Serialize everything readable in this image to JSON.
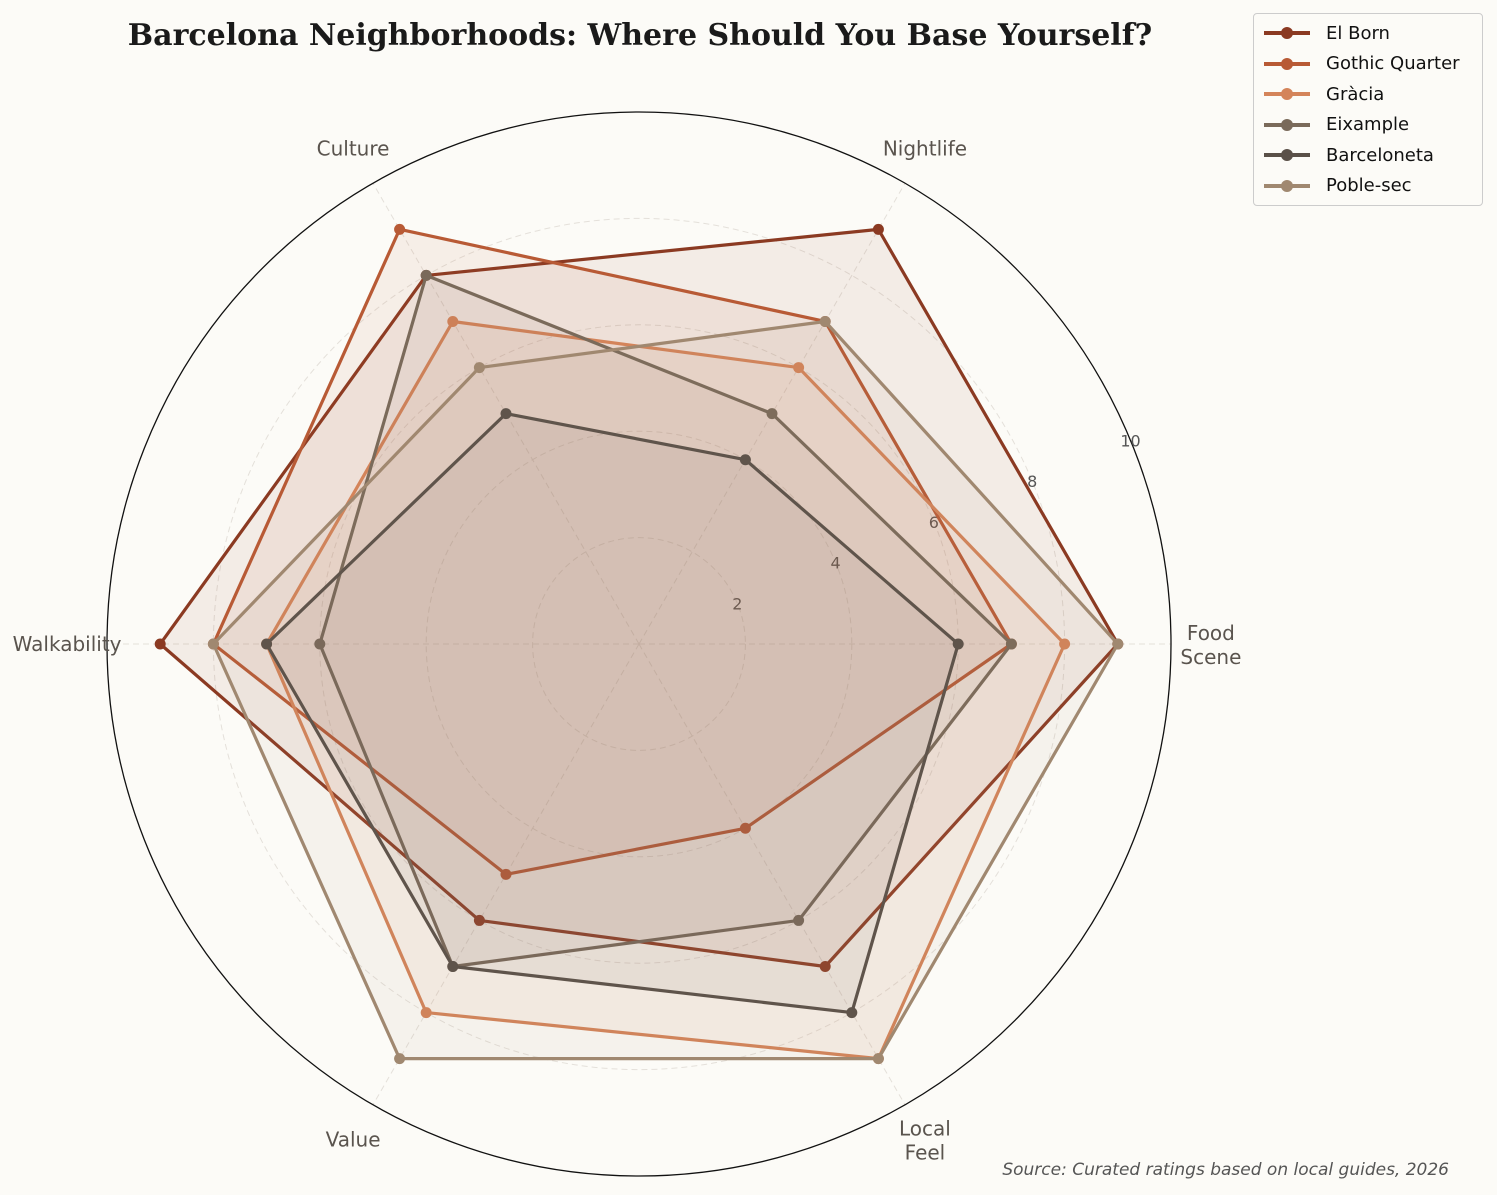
{
  "chart_data": {
    "type": "radar",
    "title": "Barcelona Neighborhoods: Where Should You Base Yourself?",
    "axes": [
      "Food\nScene",
      "Nightlife",
      "Culture",
      "Walkability",
      "Value",
      "Local\nFeel"
    ],
    "rlim": [
      0,
      10
    ],
    "rticks": [
      2,
      4,
      6,
      8,
      10
    ],
    "grid": true,
    "legend_position": "top-right",
    "series": [
      {
        "name": "El Born",
        "color": "#8b3a22",
        "values": [
          9,
          9,
          8,
          9,
          6,
          7
        ]
      },
      {
        "name": "Gothic Quarter",
        "color": "#b85a35",
        "values": [
          7,
          7,
          9,
          8,
          5,
          4
        ]
      },
      {
        "name": "Gràcia",
        "color": "#d4845a",
        "values": [
          8,
          6,
          7,
          7,
          8,
          9
        ]
      },
      {
        "name": "Eixample",
        "color": "#7a6a5a",
        "values": [
          7,
          5,
          8,
          6,
          7,
          6
        ]
      },
      {
        "name": "Barceloneta",
        "color": "#5a5048",
        "values": [
          6,
          4,
          5,
          7,
          7,
          8
        ]
      },
      {
        "name": "Poble-sec",
        "color": "#a08870",
        "values": [
          9,
          7,
          6,
          8,
          9,
          9
        ]
      }
    ],
    "source": "Source: Curated ratings based on local guides, 2026"
  }
}
